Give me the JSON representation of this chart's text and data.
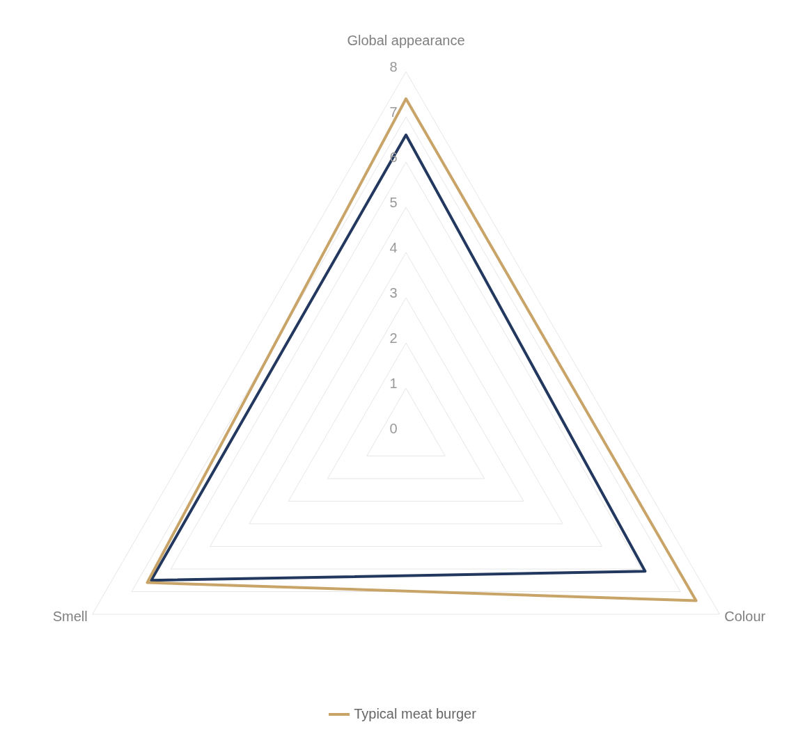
{
  "chart_data": {
    "type": "radar",
    "categories": [
      "Global appearance",
      "Colour",
      "Smell"
    ],
    "series": [
      {
        "color": "#22385f",
        "values": [
          6.6,
          6.1,
          6.5
        ]
      },
      {
        "name": "Typical meat burger",
        "color": "#c9a468",
        "values": [
          7.4,
          7.4,
          6.6
        ]
      }
    ],
    "ylim": [
      0,
      8
    ],
    "yticks": [
      0,
      1,
      2,
      3,
      4,
      5,
      6,
      7,
      8
    ],
    "grid": true,
    "legend": "bottom",
    "marker": "none"
  }
}
